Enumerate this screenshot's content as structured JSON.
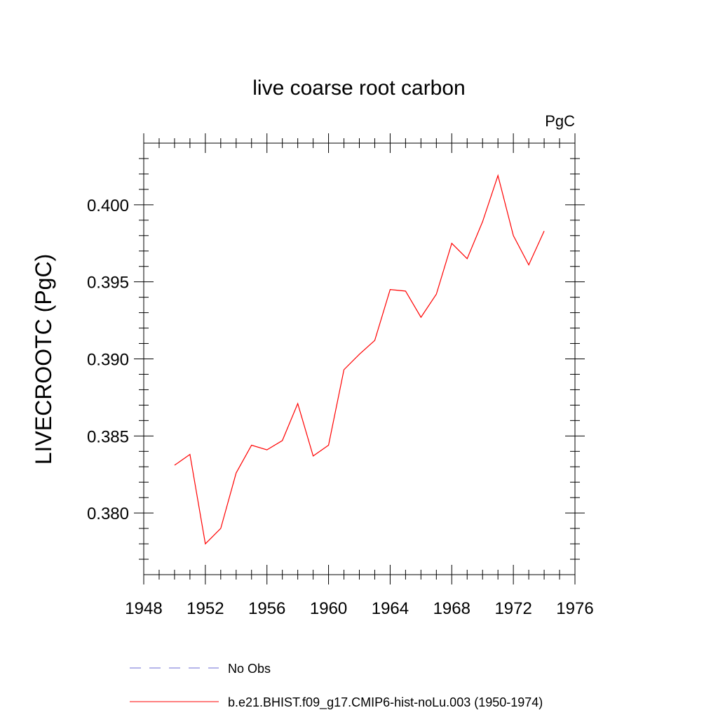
{
  "chart_data": {
    "type": "line",
    "title": "live coarse root carbon",
    "units": "PgC",
    "xlabel": "",
    "ylabel": "LIVECROOTC  (PgC)",
    "xlim": [
      1948,
      1976
    ],
    "ylim": [
      0.376,
      0.404
    ],
    "x_ticks": [
      1948,
      1952,
      1956,
      1960,
      1964,
      1968,
      1972,
      1976
    ],
    "x_tick_labels": [
      "1948",
      "1952",
      "1956",
      "1960",
      "1964",
      "1968",
      "1972",
      "1976"
    ],
    "y_ticks": [
      0.38,
      0.385,
      0.39,
      0.395,
      0.4
    ],
    "y_tick_labels": [
      "0.380",
      "0.385",
      "0.390",
      "0.395",
      "0.400"
    ],
    "grid": false,
    "legend_position": "bottom",
    "series": [
      {
        "name": "b.e21.BHIST.f09_g17.CMIP6-hist-noLu.003 (1950-1974)",
        "color": "#ff0000",
        "dash": "solid",
        "x": [
          1950,
          1951,
          1952,
          1953,
          1954,
          1955,
          1956,
          1957,
          1958,
          1959,
          1960,
          1961,
          1962,
          1963,
          1964,
          1965,
          1966,
          1967,
          1968,
          1969,
          1970,
          1971,
          1972,
          1973,
          1974
        ],
        "y": [
          0.3831,
          0.3838,
          0.378,
          0.379,
          0.3826,
          0.3844,
          0.3841,
          0.3847,
          0.3871,
          0.3837,
          0.3844,
          0.3893,
          0.3903,
          0.3912,
          0.3945,
          0.3944,
          0.3927,
          0.3942,
          0.3975,
          0.3965,
          0.3989,
          0.4019,
          0.398,
          0.3961,
          0.3983
        ]
      }
    ],
    "legend": [
      {
        "label": "No Obs",
        "color": "#6b6bd6",
        "dash": "dashed"
      },
      {
        "label": "b.e21.BHIST.f09_g17.CMIP6-hist-noLu.003 (1950-1974)",
        "color": "#ff0000",
        "dash": "solid"
      }
    ]
  }
}
